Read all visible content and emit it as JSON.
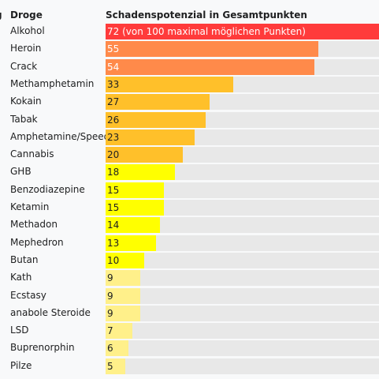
{
  "headers": {
    "rank": "g",
    "drug": "Droge",
    "score": "Schadenspotenzial in Gesamtpunkten"
  },
  "max_score": 100,
  "colors": {
    "red": "#ff3b3b",
    "orange": "#ff8a4a",
    "amber": "#ffc02a",
    "yellow": "#ffff00",
    "pale": "#fff08a",
    "track": "#e8e8e8"
  },
  "chart_data": {
    "type": "bar",
    "orientation": "horizontal",
    "title": "Schadenspotenzial in Gesamtpunkten",
    "categories": [
      "Alkohol",
      "Heroin",
      "Crack",
      "Methamphetamin",
      "Kokain",
      "Tabak",
      "Amphetamine/Speed",
      "Cannabis",
      "GHB",
      "Benzodiazepine",
      "Ketamin",
      "Methadon",
      "Mephedron",
      "Butan",
      "Kath",
      "Ecstasy",
      "anabole Steroide",
      "LSD",
      "Buprenorphin",
      "Pilze"
    ],
    "values": [
      72,
      55,
      54,
      33,
      27,
      26,
      23,
      20,
      18,
      15,
      15,
      14,
      13,
      10,
      9,
      9,
      9,
      7,
      6,
      5
    ],
    "labels": [
      "72 (von 100 maximal möglichen Punkten)",
      "55",
      "54",
      "33",
      "27",
      "26",
      "23",
      "20",
      "18",
      "15",
      "15",
      "14",
      "13",
      "10",
      "9",
      "9",
      "9",
      "7",
      "6",
      "5"
    ],
    "bar_colors": [
      "red",
      "orange",
      "orange",
      "amber",
      "amber",
      "amber",
      "amber",
      "amber",
      "yellow",
      "yellow",
      "yellow",
      "yellow",
      "yellow",
      "yellow",
      "pale",
      "pale",
      "pale",
      "pale",
      "pale",
      "pale"
    ],
    "label_colors": [
      "#ffffff",
      "#ffffff",
      "#ffffff",
      "#202122",
      "#202122",
      "#202122",
      "#202122",
      "#202122",
      "#202122",
      "#202122",
      "#202122",
      "#202122",
      "#202122",
      "#202122",
      "#202122",
      "#202122",
      "#202122",
      "#202122",
      "#202122",
      "#202122"
    ],
    "xlim": [
      0,
      100
    ]
  }
}
